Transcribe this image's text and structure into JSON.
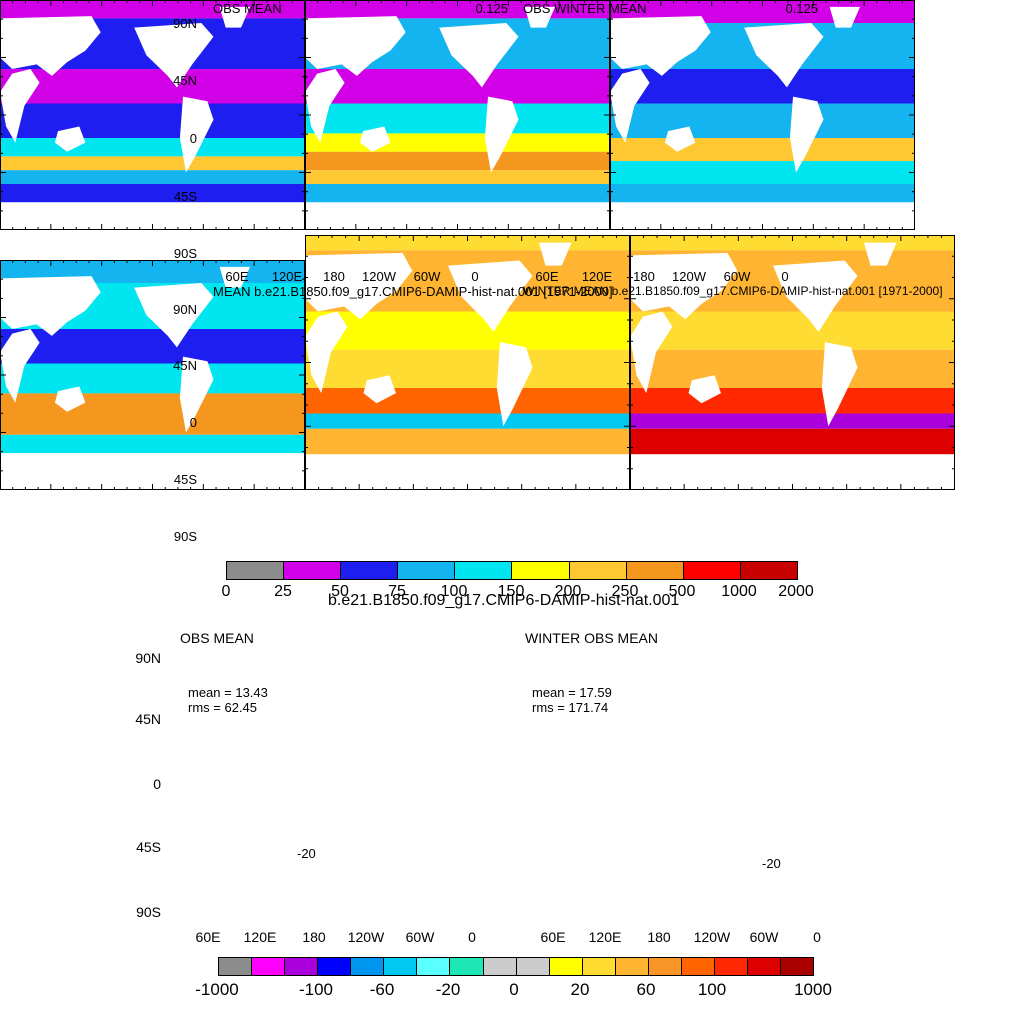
{
  "top_section": {
    "panels": [
      {
        "title": "OBS MEAN",
        "value": "0.125"
      },
      {
        "title": "OBS WINTER MEAN",
        "value": "0.125"
      },
      {
        "title": "MEAN b.e21.B1850.f09_g17.CMIP6-DAMIP-hist-nat.001 [1971-2000]",
        "value": ""
      },
      {
        "title": "WINTER MEAN b.e21.B1850.f09_g17.CMIP6-DAMIP-hist-nat.001 [1971-2000]",
        "value": ""
      }
    ],
    "lat_labels": [
      "90N",
      "45N",
      "0",
      "45S",
      "90S"
    ],
    "lon_labels": [
      "60E",
      "120E",
      "180",
      "120W",
      "60W",
      "0"
    ],
    "colorbar": {
      "labels": [
        "0",
        "25",
        "50",
        "75",
        "100",
        "150",
        "200",
        "250",
        "500",
        "1000",
        "2000"
      ],
      "colors": [
        "#8c8c8c",
        "#d200e6",
        "#1e1ef0",
        "#14b4f0",
        "#00e6f0",
        "#ffff00",
        "#ffc832",
        "#f5961e",
        "#ff0000",
        "#c80000"
      ]
    },
    "section_title": "b.e21.B1850.f09_g17.CMIP6-DAMIP-hist-nat.001"
  },
  "bottom_section": {
    "panels": [
      {
        "title": "OBS MEAN",
        "mean": "mean = 13.43",
        "rms": "rms = 62.45",
        "contour_label": "-20"
      },
      {
        "title": "WINTER OBS MEAN",
        "mean": "mean = 17.59",
        "rms": "rms = 171.74",
        "contour_label": "-20"
      }
    ],
    "lat_labels": [
      "90N",
      "45N",
      "0",
      "45S",
      "90S"
    ],
    "lon_labels": [
      "60E",
      "120E",
      "180",
      "120W",
      "60W",
      "0"
    ],
    "colorbar": {
      "labels": [
        "-1000",
        "-100",
        "-60",
        "-20",
        "0",
        "20",
        "60",
        "100",
        "1000"
      ],
      "colors": [
        "#8c8c8c",
        "#ff00ff",
        "#aa00dc",
        "#0000ff",
        "#0096f0",
        "#00c8f0",
        "#5affff",
        "#1ee6b4",
        "#cccccc",
        "#cccccc",
        "#ffff00",
        "#ffdc32",
        "#ffb432",
        "#fa9628",
        "#ff6400",
        "#ff2800",
        "#dc0000",
        "#aa0000"
      ]
    }
  },
  "colors": {
    "land": "#ffffff",
    "axis": "#000000"
  }
}
